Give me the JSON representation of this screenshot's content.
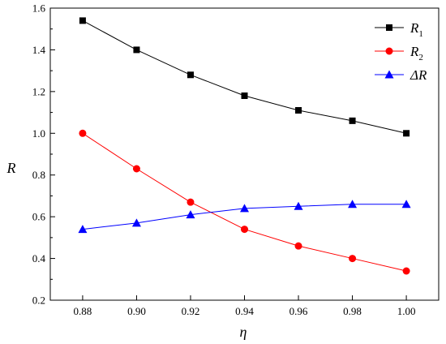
{
  "chart_data": {
    "type": "line",
    "xlabel": "η",
    "ylabel": "R",
    "xlim": [
      0.868,
      1.012
    ],
    "ylim": [
      0.2,
      1.6
    ],
    "x_ticks": [
      "0.88",
      "0.90",
      "0.92",
      "0.94",
      "0.96",
      "0.98",
      "1.00"
    ],
    "x_tick_values": [
      0.88,
      0.9,
      0.92,
      0.94,
      0.96,
      0.98,
      1.0
    ],
    "y_ticks": [
      "0.2",
      "0.4",
      "0.6",
      "0.8",
      "1.0",
      "1.2",
      "1.4",
      "1.6"
    ],
    "y_tick_values": [
      0.2,
      0.4,
      0.6,
      0.8,
      1.0,
      1.2,
      1.4,
      1.6
    ],
    "grid": false,
    "legend_position": "top-right",
    "x": [
      0.88,
      0.9,
      0.92,
      0.94,
      0.96,
      0.98,
      1.0
    ],
    "series": [
      {
        "name": "R1",
        "label_main": "R",
        "label_sub": "1",
        "color": "#000000",
        "marker": "square",
        "values": [
          1.54,
          1.4,
          1.28,
          1.18,
          1.11,
          1.06,
          1.0
        ]
      },
      {
        "name": "R2",
        "label_main": "R",
        "label_sub": "2",
        "color": "#ff0000",
        "marker": "circle",
        "values": [
          1.0,
          0.83,
          0.67,
          0.54,
          0.46,
          0.4,
          0.34
        ]
      },
      {
        "name": "ΔR",
        "label_main": "ΔR",
        "label_sub": "",
        "color": "#0000ff",
        "marker": "triangle",
        "values": [
          0.54,
          0.57,
          0.61,
          0.64,
          0.65,
          0.66,
          0.66
        ]
      }
    ]
  }
}
